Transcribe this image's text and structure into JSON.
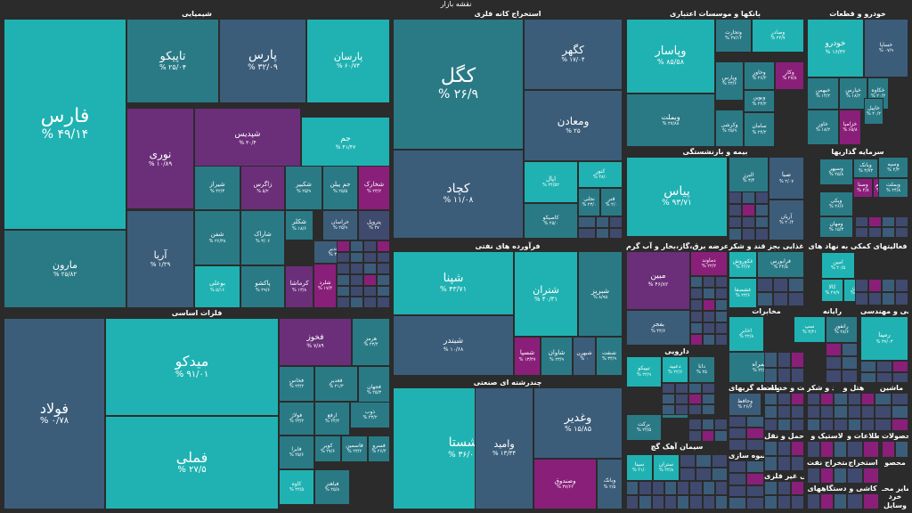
{
  "title": "نقشه بازار",
  "colors": {
    "teal": "#1fa3a3",
    "tealDark": "#2a7a86",
    "slate": "#3b5d7a",
    "slateDark": "#404a6e",
    "purple": "#6b2f7a",
    "magenta": "#8a1f7a",
    "bright": "#20b2b2"
  },
  "sectors": [
    {
      "id": "chemicals",
      "title": "شیمیایی"
    },
    {
      "id": "metals",
      "title": "استخراج کانه فلزی"
    },
    {
      "id": "banks",
      "title": "بانکها و موسسات اعتباری"
    },
    {
      "id": "autos",
      "title": "خودرو و قطعات"
    },
    {
      "id": "investment",
      "title": "سرمایه گذاریها"
    },
    {
      "id": "insurance",
      "title": "بیمه و بازنشستگی"
    },
    {
      "id": "oil",
      "title": "فرآورده های نفتی"
    },
    {
      "id": "utilities",
      "title": "عرضه برق،گاز،بخار و آب گرم"
    },
    {
      "id": "food",
      "title": "غذایی بجز قند و شکر"
    },
    {
      "id": "financial",
      "title": "فعالیتهای کمکی به نهاد های"
    },
    {
      "id": "basemetals",
      "title": "فلزات اساسی"
    },
    {
      "id": "multi",
      "title": "چندرشته ای صنعتی"
    },
    {
      "id": "telecom",
      "title": "مخابرات"
    },
    {
      "id": "computer",
      "title": "رایانه"
    },
    {
      "id": "engineering",
      "title": "فنی و مهندسی"
    },
    {
      "id": "pharma",
      "title": "دارویی"
    },
    {
      "id": "cement",
      "title": "سیمان آهک گچ"
    },
    {
      "id": "transport",
      "title": "واسطه گریهای"
    },
    {
      "id": "services",
      "title": "زراعت و خدمات"
    },
    {
      "id": "sugar",
      "title": "قند و شکر"
    },
    {
      "id": "hotel",
      "title": "هتل و"
    },
    {
      "id": "machinery",
      "title": "ماشین"
    },
    {
      "id": "transit",
      "title": "حمل و نقل"
    },
    {
      "id": "plastic",
      "title": "لاستیک و"
    },
    {
      "id": "it",
      "title": "اطلاعات و"
    },
    {
      "id": "products",
      "title": "محصولات"
    },
    {
      "id": "mass",
      "title": "انبوه سازی"
    },
    {
      "id": "mining",
      "title": "استخراج نفت"
    },
    {
      "id": "minerals",
      "title": "استخراج"
    },
    {
      "id": "textile",
      "title": "محصو"
    },
    {
      "id": "nonmetal",
      "title": "کانی غیر فلزی"
    },
    {
      "id": "appliances",
      "title": "دستگاههای"
    },
    {
      "id": "mineral2",
      "title": "کاشی و"
    },
    {
      "id": "wood",
      "title": "سایر محـ"
    },
    {
      "id": "trade",
      "title": "خرد"
    },
    {
      "id": "vehicles",
      "title": "وسایل"
    }
  ],
  "tiles": [
    {
      "name": "فارس",
      "value": "% ۴۹/۱۴"
    },
    {
      "name": "تاپیکو",
      "value": "% ۲۵/۰۴"
    },
    {
      "name": "پارس",
      "value": "% ۳۲/۰۹"
    },
    {
      "name": "پارسان",
      "value": "% ۶۰/۷۴"
    },
    {
      "name": "نوری",
      "value": "% ۱۰/۸۹"
    },
    {
      "name": "شپدیس",
      "value": "% ۳۰/۴"
    },
    {
      "name": "جم",
      "value": "% ۴۱/۴۷"
    },
    {
      "name": "مارون",
      "value": "% ۲۵/۸۲"
    },
    {
      "name": "آریا",
      "value": "% ۱/۲۹"
    },
    {
      "name": "شیراز",
      "value": "% ۴۲/۳"
    },
    {
      "name": "زاگرس",
      "value": "% ۵/۲"
    },
    {
      "name": "شکبیر",
      "value": "% ۲۵/۹"
    },
    {
      "name": "جم پیلن",
      "value": "% ۲۵/۵"
    },
    {
      "name": "شخارک",
      "value": "% ۲۴/۲"
    },
    {
      "name": "شفن",
      "value": "% ۲۶/۳۸"
    },
    {
      "name": "شاراک",
      "value": "% ۳/۰۶"
    },
    {
      "name": "شکلر",
      "value": "% ۱۸/۶"
    },
    {
      "name": "خراسان",
      "value": "% ۲۵/۹"
    },
    {
      "name": "پتروپل",
      "value": "% ۲۷"
    },
    {
      "name": "شغدیر",
      "value": "% ۳۴/۵"
    },
    {
      "name": "بوعلی",
      "value": "% ۵/۱۶"
    },
    {
      "name": "پاکشو",
      "value": "% ۲۹/۶"
    },
    {
      "name": "کرماشا",
      "value": "% ۱۳/۸"
    },
    {
      "name": "شلرد",
      "value": "% ۱۷/۴"
    },
    {
      "name": "کگل",
      "value": "% ۲۶/۹"
    },
    {
      "name": "کگهر",
      "value": "% ۱۷/۰۴"
    },
    {
      "name": "ومعادن",
      "value": "% ۲۵"
    },
    {
      "name": "کچاد",
      "value": "% ۱۱/۰۸"
    },
    {
      "name": "اپال",
      "value": "% ۲۴/۵۲"
    },
    {
      "name": "کنور",
      "value": "% ۲۸/۰"
    },
    {
      "name": "کاصیکو",
      "value": "% ۲۵/۰"
    },
    {
      "name": "نجلی",
      "value": "% ۲۳/۰"
    },
    {
      "name": "فنر",
      "value": "% ۲/۰"
    },
    {
      "name": "وپاسار",
      "value": "% ۸۵/۵۸"
    },
    {
      "name": "وتجارت",
      "value": "% ۲۷/۱۴"
    },
    {
      "name": "وصادر",
      "value": "% ۲۴/۷"
    },
    {
      "name": "وبملت",
      "value": "% ۲۷/۸۸"
    },
    {
      "name": "وپارس",
      "value": "% ۲۳/۶"
    },
    {
      "name": "وخاور",
      "value": "% ۲۶/۲"
    },
    {
      "name": "وکار",
      "value": "% ۲۷/۸"
    },
    {
      "name": "وبوین",
      "value": "% ۲۴/۲"
    },
    {
      "name": "وکرشی",
      "value": "% ۲۵/۹"
    },
    {
      "name": "سامان",
      "value": "% ۲۴/۲"
    },
    {
      "name": "خودرو",
      "value": "% ۱۶/۳۲"
    },
    {
      "name": "خساپا",
      "value": "% ۰۷/۹"
    },
    {
      "name": "خبهمن",
      "value": "% ۱۴/۲"
    },
    {
      "name": "خپارس",
      "value": "% ۱۸/۲"
    },
    {
      "name": "خکاوه",
      "value": "% ۲۰/۲"
    },
    {
      "name": "خاور",
      "value": "% ۱۸/۲"
    },
    {
      "name": "خزامیا",
      "value": "% ۶۵/۸"
    },
    {
      "name": "خاپیل",
      "value": "% ۲۰/۲"
    },
    {
      "name": "پیاس",
      "value": "% ۹۳/۷۱"
    },
    {
      "name": "صبا",
      "value": "% ۲/۰۷"
    },
    {
      "name": "البرز",
      "value": "% ۳/۴"
    },
    {
      "name": "آریان",
      "value": "% ۲۰/۴"
    },
    {
      "name": "وسپهر",
      "value": "% ۲۵/۸"
    },
    {
      "name": "وبانک",
      "value": "% ۳/۷۳"
    },
    {
      "name": "وصنا",
      "value": "% ۴/۸"
    },
    {
      "name": "وخارزم",
      "value": "% ۲۲/۵"
    },
    {
      "name": "ویکی",
      "value": "% ۲۶/۶"
    },
    {
      "name": "ومهان",
      "value": "% ۱۵/۳"
    },
    {
      "name": "وسپه",
      "value": "% ۴/۳"
    },
    {
      "name": "وبملت",
      "value": "% ۲۴/۸"
    },
    {
      "name": "شپنا",
      "value": "% ۴۳/۷۱"
    },
    {
      "name": "شتران",
      "value": "% ۴۰/۳۱"
    },
    {
      "name": "شبریز",
      "value": "% ۸/۹۵"
    },
    {
      "name": "شبندر",
      "value": "% ۱۰/۶۸"
    },
    {
      "name": "شسپا",
      "value": "% ۱۳/۴۷"
    },
    {
      "name": "شاوان",
      "value": "% ۲۳/۹"
    },
    {
      "name": "شبهرن",
      "value": "% ۰"
    },
    {
      "name": "شنفت",
      "value": "% ۳۴/۹"
    },
    {
      "name": "مبین",
      "value": "% ۴۶/۸۲"
    },
    {
      "name": "دماوند",
      "value": "% ۲۲/۲"
    },
    {
      "name": "بفجر",
      "value": "% ۴۴/۶"
    },
    {
      "name": "غکوروش",
      "value": "% ۴۲/۷"
    },
    {
      "name": "غشصفا",
      "value": "% ۲۳/۶"
    },
    {
      "name": "فرابورس",
      "value": "% ۲۴/۵"
    },
    {
      "name": "امین",
      "value": "% ۲۰/۵"
    },
    {
      "name": "کالا",
      "value": "% ۲۷/۷"
    },
    {
      "name": "تنوین",
      "value": "% ۲۵/۸"
    },
    {
      "name": "میدکو",
      "value": "% ۹۱/۰۱"
    },
    {
      "name": "فولاد",
      "value": "% ۰/۷۸"
    },
    {
      "name": "فملی",
      "value": "% ۲۷/۵"
    },
    {
      "name": "فخوز",
      "value": "% ۷/۸۹"
    },
    {
      "name": "هرمز",
      "value": "% ۲۳/۴"
    },
    {
      "name": "فخاس",
      "value": "% ۲۳/۲"
    },
    {
      "name": "فغدیر",
      "value": "% ۲۱/۳"
    },
    {
      "name": "فجهان",
      "value": "% ۲۵/۳"
    },
    {
      "name": "فولاژ",
      "value": "% ۲۳/۲"
    },
    {
      "name": "ارفع",
      "value": "% ۲۴/۲"
    },
    {
      "name": "ذوب",
      "value": "% ۲۳/۲"
    },
    {
      "name": "فایرا",
      "value": "% ۲۵/۶"
    },
    {
      "name": "کویر",
      "value": "% ۲۷/۶"
    },
    {
      "name": "فاسمین",
      "value": "% ۲۳/۲"
    },
    {
      "name": "فسرو",
      "value": "% ۲۶/۴"
    },
    {
      "name": "کاوه",
      "value": "% ۲۴/۵"
    },
    {
      "name": "فباهنر",
      "value": "% ۲۵/۸"
    },
    {
      "name": "شستا",
      "value": "% ۳۶/۰۶"
    },
    {
      "name": "وامید",
      "value": "% ۱۳/۳۴"
    },
    {
      "name": "وغدیر",
      "value": "% ۱۵/۸۵"
    },
    {
      "name": "وصندوق",
      "value": "% ۳۷/۶۲"
    },
    {
      "name": "وبانک",
      "value": "% ۲/۵"
    },
    {
      "name": "اخابر",
      "value": "% ۲۲/۸"
    },
    {
      "name": "همراه",
      "value": "% ۲۲/۹"
    },
    {
      "name": "سپ",
      "value": "% ۳/۲۱"
    },
    {
      "name": "رانفور",
      "value": "% ۲۸/۶"
    },
    {
      "name": "رمپنا",
      "value": "% ۳۷/۰۳"
    },
    {
      "name": "تیپیکو",
      "value": "% ۲۲/۹"
    },
    {
      "name": "دعبید",
      "value": "% ۲۲/۶"
    },
    {
      "name": "دانا",
      "value": "% ۲۵"
    },
    {
      "name": "وپخش",
      "value": "% ۲۵/۳"
    },
    {
      "name": "برکت",
      "value": "% ۲۲/۵"
    },
    {
      "name": "سپنا",
      "value": "% ۲۱/۰"
    },
    {
      "name": "ستران",
      "value": "% ۲۲/۸"
    },
    {
      "name": "وحافظ",
      "value": "% ۲۶/۶"
    }
  ]
}
